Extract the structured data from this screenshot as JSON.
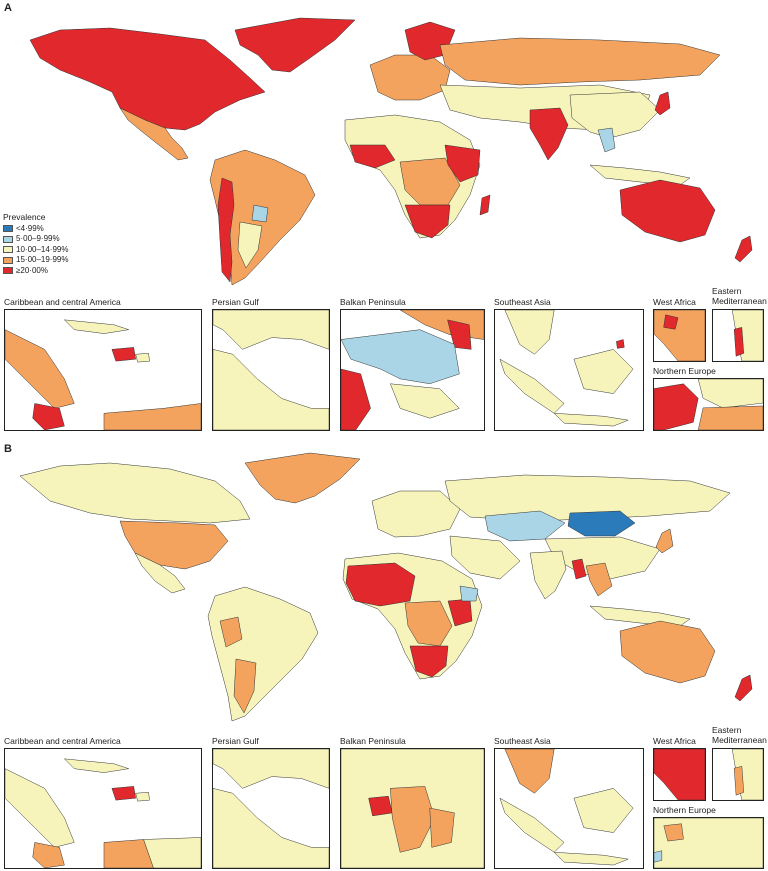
{
  "panels": [
    {
      "letter": "A",
      "insets": [
        {
          "label": "Caribbean and central America"
        },
        {
          "label": "Persian Gulf"
        },
        {
          "label": "Balkan Peninsula"
        },
        {
          "label": "Southeast Asia"
        },
        {
          "label": "West Africa"
        },
        {
          "label": "Eastern Mediterranean"
        },
        {
          "label": "Northern Europe"
        }
      ]
    },
    {
      "letter": "B",
      "insets": [
        {
          "label": "Caribbean and central America"
        },
        {
          "label": "Persian Gulf"
        },
        {
          "label": "Balkan Peninsula"
        },
        {
          "label": "Southeast Asia"
        },
        {
          "label": "West Africa"
        },
        {
          "label": "Eastern Mediterranean"
        },
        {
          "label": "Northern Europe"
        }
      ]
    }
  ],
  "legend": {
    "title": "Prevalence",
    "items": [
      {
        "label": "<4·99%",
        "color": "#2b7bba"
      },
      {
        "label": "5·00–9·99%",
        "color": "#a9d5e6"
      },
      {
        "label": "10·00–14·99%",
        "color": "#f6f4bb"
      },
      {
        "label": "15·00–19·99%",
        "color": "#f3a35e"
      },
      {
        "label": "≥20·00%",
        "color": "#e0282d"
      }
    ]
  },
  "colors": {
    "dark_blue": "#2b7bba",
    "light_blue": "#a9d5e6",
    "pale_yellow": "#f6f4bb",
    "orange": "#f3a35e",
    "red": "#e0282d"
  }
}
